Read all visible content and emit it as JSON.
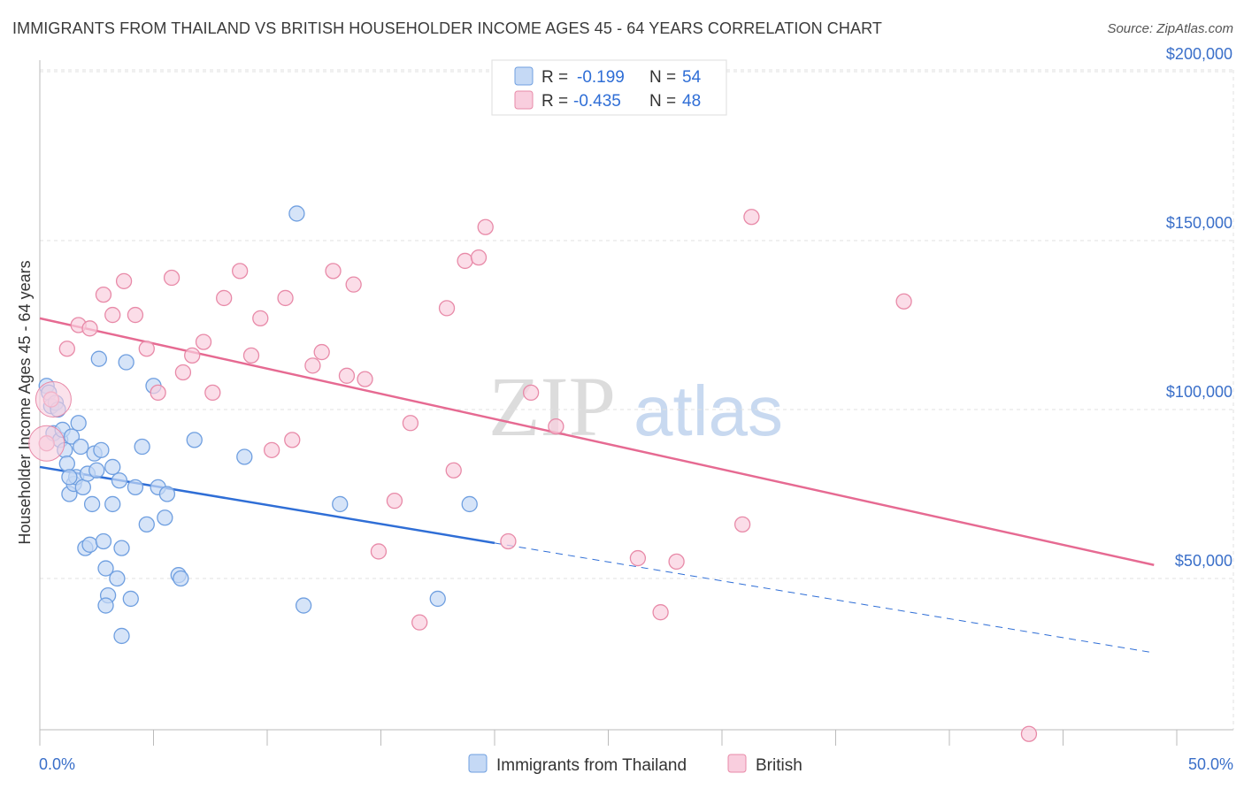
{
  "title": "IMMIGRANTS FROM THAILAND VS BRITISH HOUSEHOLDER INCOME AGES 45 - 64 YEARS CORRELATION CHART",
  "source": "Source: ZipAtlas.com",
  "watermark": {
    "zip": "ZIP",
    "atlas": "atlas"
  },
  "colors": {
    "blue_fill": "#c5d9f5",
    "blue_stroke": "#6f9fe0",
    "blue_line": "#2f6ed6",
    "pink_fill": "#f9cede",
    "pink_stroke": "#e88aa8",
    "pink_line": "#e66a92",
    "grid": "#dddddd",
    "axis_label": "#3a6fc9"
  },
  "legend": {
    "rows": [
      {
        "r_label": "R =",
        "r_value": "-0.199",
        "n_label": "N =",
        "n_value": "54"
      },
      {
        "r_label": "R =",
        "r_value": "-0.435",
        "n_label": "N =",
        "n_value": "48"
      }
    ]
  },
  "chart_data": {
    "type": "scatter",
    "title": "IMMIGRANTS FROM THAILAND VS BRITISH HOUSEHOLDER INCOME AGES 45 - 64 YEARS CORRELATION CHART",
    "xlabel": "",
    "ylabel": "Householder Income Ages 45 - 64 years",
    "xlim": [
      0,
      50
    ],
    "ylim": [
      0,
      210000
    ],
    "x_tick_labels": [
      "0.0%",
      "50.0%"
    ],
    "y_ticks": [
      50000,
      100000,
      150000,
      200000
    ],
    "y_tick_labels": [
      "$50,000",
      "$100,000",
      "$150,000",
      "$200,000"
    ],
    "grid": true,
    "legend_position": "top-center",
    "series": [
      {
        "name": "Immigrants from Thailand",
        "color": "#6f9fe0",
        "trend": {
          "x": [
            0.0,
            20.0
          ],
          "y": [
            83000,
            60500
          ],
          "dashed_extension_to_x": 49.0,
          "dashed_end_y": 28000
        },
        "points": [
          [
            0.3,
            107000
          ],
          [
            0.4,
            105000
          ],
          [
            0.5,
            101000
          ],
          [
            0.6,
            93000
          ],
          [
            0.7,
            102000
          ],
          [
            0.8,
            100000
          ],
          [
            0.9,
            91000
          ],
          [
            1.0,
            94000
          ],
          [
            1.1,
            88000
          ],
          [
            1.2,
            84000
          ],
          [
            1.3,
            75000
          ],
          [
            1.4,
            92000
          ],
          [
            1.5,
            78000
          ],
          [
            1.6,
            80000
          ],
          [
            1.7,
            96000
          ],
          [
            1.8,
            89000
          ],
          [
            1.9,
            77000
          ],
          [
            2.0,
            59000
          ],
          [
            2.1,
            81000
          ],
          [
            2.2,
            60000
          ],
          [
            2.3,
            72000
          ],
          [
            2.4,
            87000
          ],
          [
            2.5,
            82000
          ],
          [
            2.6,
            115000
          ],
          [
            2.7,
            88000
          ],
          [
            2.8,
            61000
          ],
          [
            2.9,
            53000
          ],
          [
            3.0,
            45000
          ],
          [
            3.2,
            72000
          ],
          [
            3.4,
            50000
          ],
          [
            3.5,
            79000
          ],
          [
            3.6,
            59000
          ],
          [
            3.8,
            114000
          ],
          [
            4.0,
            44000
          ],
          [
            4.2,
            77000
          ],
          [
            4.5,
            89000
          ],
          [
            4.7,
            66000
          ],
          [
            5.0,
            107000
          ],
          [
            5.2,
            77000
          ],
          [
            5.5,
            68000
          ],
          [
            5.6,
            75000
          ],
          [
            6.1,
            51000
          ],
          [
            6.2,
            50000
          ],
          [
            6.8,
            91000
          ],
          [
            9.0,
            86000
          ],
          [
            11.3,
            158000
          ],
          [
            11.6,
            42000
          ],
          [
            13.2,
            72000
          ],
          [
            17.5,
            44000
          ],
          [
            18.9,
            72000
          ],
          [
            3.6,
            33000
          ],
          [
            2.9,
            42000
          ],
          [
            3.2,
            83000
          ],
          [
            1.3,
            80000
          ]
        ]
      },
      {
        "name": "British",
        "color": "#e88aa8",
        "trend": {
          "x": [
            0.0,
            49.0
          ],
          "y": [
            127000,
            54000
          ]
        },
        "points": [
          [
            0.3,
            90000
          ],
          [
            0.5,
            103000
          ],
          [
            1.2,
            118000
          ],
          [
            1.7,
            125000
          ],
          [
            2.2,
            124000
          ],
          [
            2.8,
            134000
          ],
          [
            3.2,
            128000
          ],
          [
            3.7,
            138000
          ],
          [
            4.2,
            128000
          ],
          [
            4.7,
            118000
          ],
          [
            5.2,
            105000
          ],
          [
            5.8,
            139000
          ],
          [
            6.3,
            111000
          ],
          [
            6.7,
            116000
          ],
          [
            7.2,
            120000
          ],
          [
            7.6,
            105000
          ],
          [
            8.1,
            133000
          ],
          [
            8.8,
            141000
          ],
          [
            9.3,
            116000
          ],
          [
            9.7,
            127000
          ],
          [
            10.2,
            88000
          ],
          [
            10.8,
            133000
          ],
          [
            11.1,
            91000
          ],
          [
            12.0,
            113000
          ],
          [
            12.4,
            117000
          ],
          [
            12.9,
            141000
          ],
          [
            13.5,
            110000
          ],
          [
            13.8,
            137000
          ],
          [
            14.3,
            109000
          ],
          [
            14.9,
            58000
          ],
          [
            15.6,
            73000
          ],
          [
            16.3,
            96000
          ],
          [
            16.7,
            37000
          ],
          [
            17.9,
            130000
          ],
          [
            18.2,
            82000
          ],
          [
            18.7,
            144000
          ],
          [
            19.3,
            145000
          ],
          [
            19.6,
            154000
          ],
          [
            20.6,
            61000
          ],
          [
            21.6,
            105000
          ],
          [
            22.7,
            95000
          ],
          [
            26.3,
            56000
          ],
          [
            27.3,
            40000
          ],
          [
            28.0,
            55000
          ],
          [
            30.9,
            66000
          ],
          [
            31.3,
            157000
          ],
          [
            38.0,
            132000
          ],
          [
            43.5,
            4000
          ]
        ]
      }
    ]
  }
}
